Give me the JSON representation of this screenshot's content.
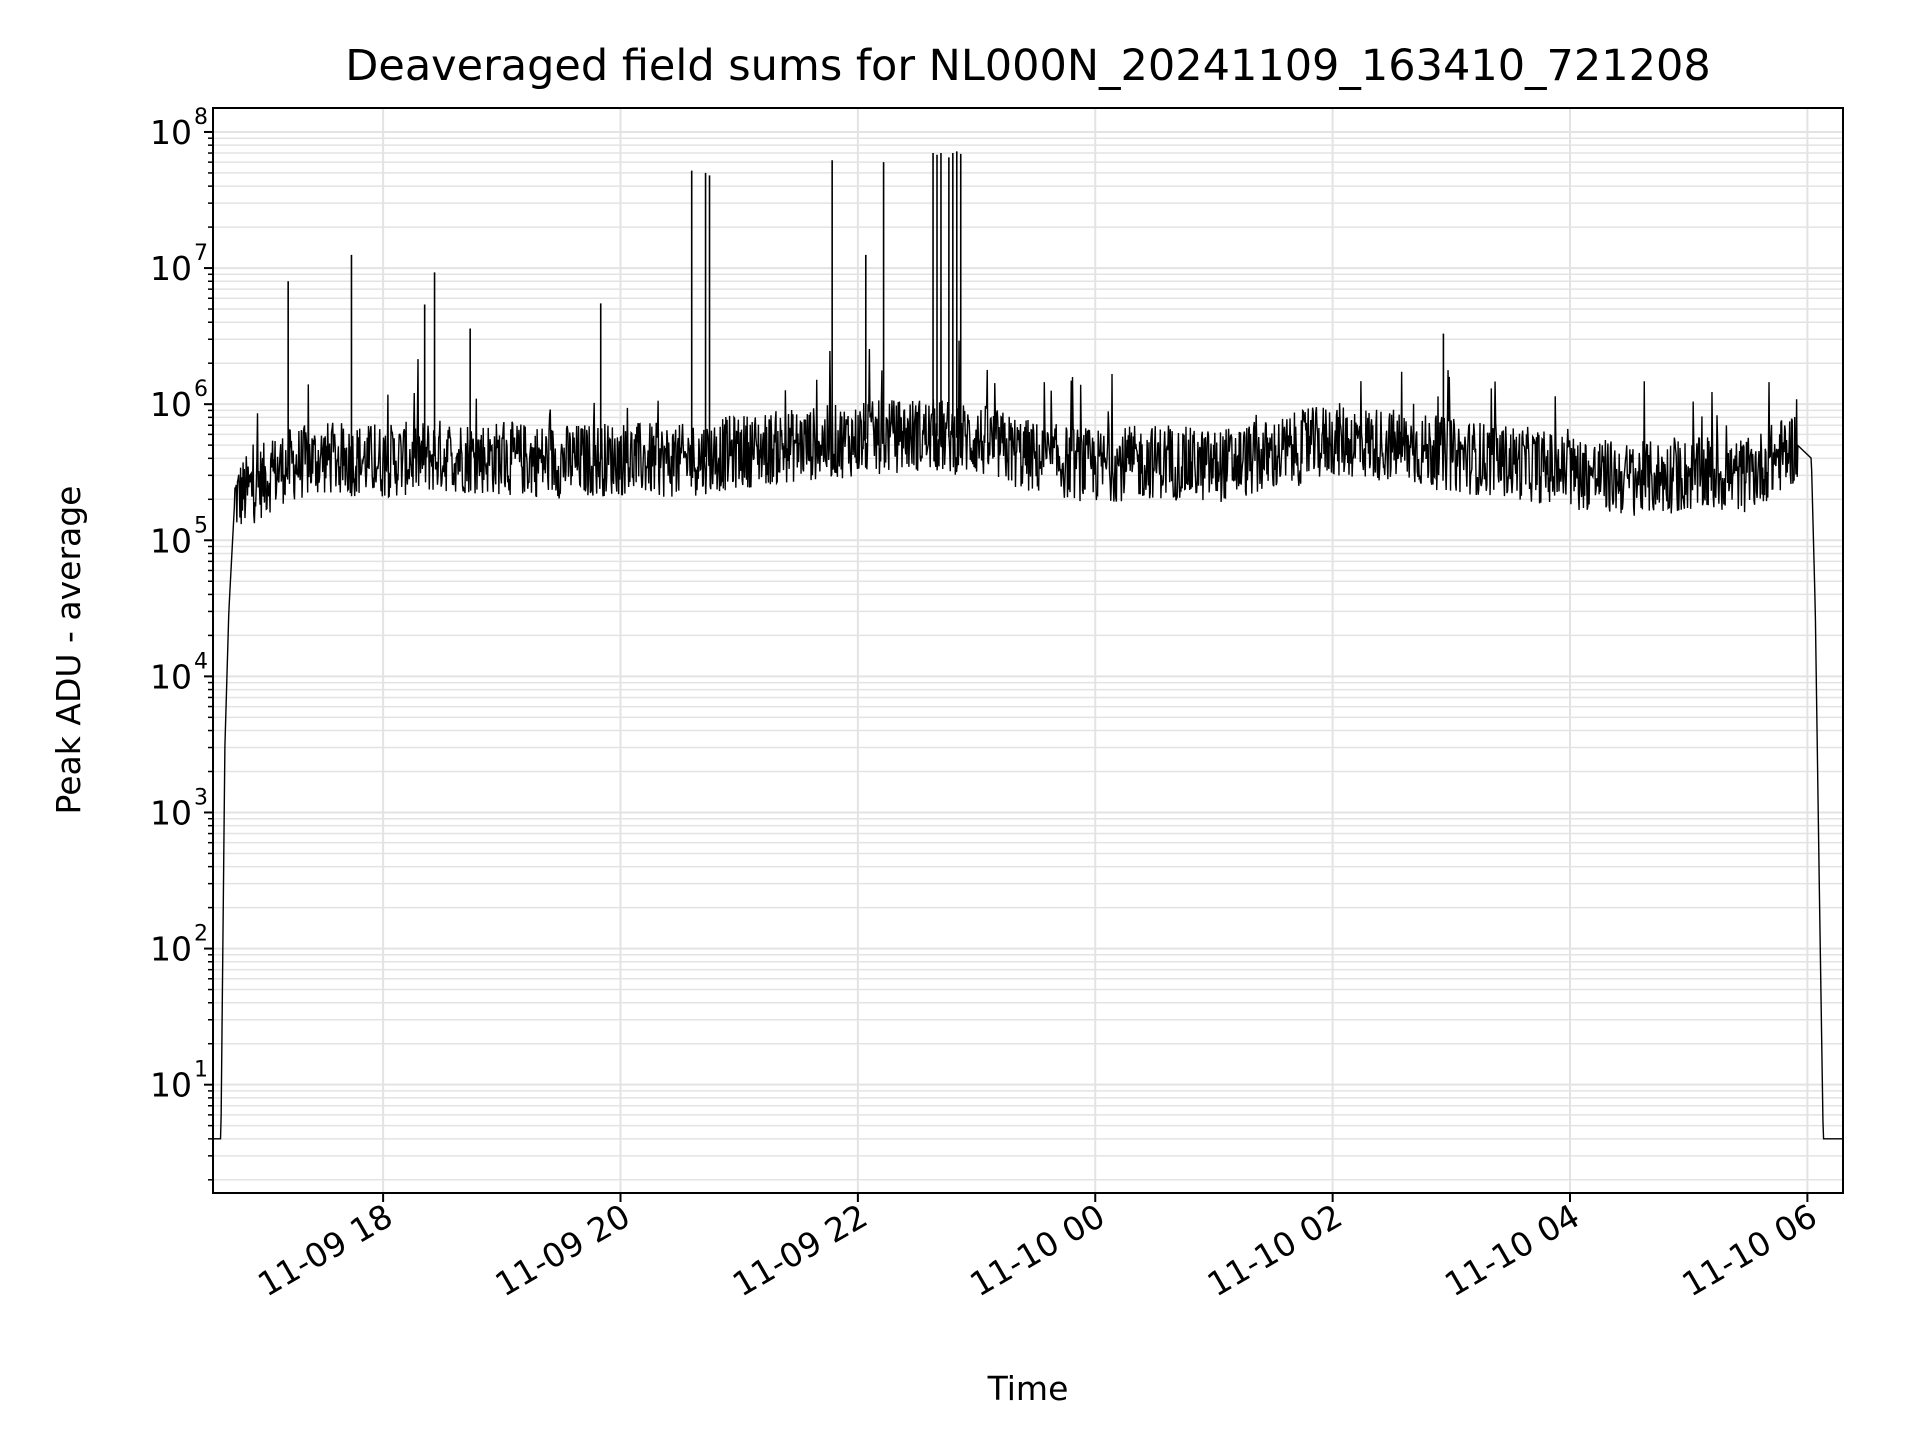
{
  "chart_data": {
    "type": "line",
    "title": "Deaveraged field sums for NL000N_20241109_163410_721208",
    "xlabel": "Time",
    "ylabel": "Peak ADU - average",
    "y_scale": "log",
    "ylim": [
      1.6,
      150000000
    ],
    "xlim": [
      "2024-11-09T16:34:00",
      "2024-11-10T06:18:00"
    ],
    "grid": true,
    "line_color": "#000000",
    "grid_color": "#e3e3e3",
    "x_ticks": [
      {
        "t": "2024-11-09T18:00:00",
        "label": "11-09 18"
      },
      {
        "t": "2024-11-09T20:00:00",
        "label": "11-09 20"
      },
      {
        "t": "2024-11-09T22:00:00",
        "label": "11-09 22"
      },
      {
        "t": "2024-11-10T00:00:00",
        "label": "11-10 00"
      },
      {
        "t": "2024-11-10T02:00:00",
        "label": "11-10 02"
      },
      {
        "t": "2024-11-10T04:00:00",
        "label": "11-10 04"
      },
      {
        "t": "2024-11-10T06:00:00",
        "label": "11-10 06"
      }
    ],
    "y_ticks": [
      {
        "value": 10,
        "base": "10",
        "exp": "1"
      },
      {
        "value": 100,
        "base": "10",
        "exp": "2"
      },
      {
        "value": 1000,
        "base": "10",
        "exp": "3"
      },
      {
        "value": 10000,
        "base": "10",
        "exp": "4"
      },
      {
        "value": 100000,
        "base": "10",
        "exp": "5"
      },
      {
        "value": 1000000,
        "base": "10",
        "exp": "6"
      },
      {
        "value": 10000000,
        "base": "10",
        "exp": "7"
      },
      {
        "value": 100000000,
        "base": "10",
        "exp": "8"
      }
    ],
    "series": [
      {
        "points": [
          [
            "2024-11-09T16:34:00",
            4
          ],
          [
            "2024-11-09T16:38:00",
            4
          ],
          [
            "2024-11-09T16:40:00",
            3000
          ],
          [
            "2024-11-09T16:42:00",
            30000
          ],
          [
            "2024-11-09T16:45:00",
            200000
          ],
          [
            "2024-11-09T17:10:00",
            350000
          ],
          [
            "2024-11-09T17:30:00",
            400000
          ],
          [
            "2024-11-09T18:00:00",
            380000
          ],
          [
            "2024-11-09T18:30:00",
            420000
          ],
          [
            "2024-11-09T19:00:00",
            400000
          ],
          [
            "2024-11-09T19:30:00",
            380000
          ],
          [
            "2024-11-09T20:00:00",
            400000
          ],
          [
            "2024-11-09T20:30:00",
            380000
          ],
          [
            "2024-11-09T21:00:00",
            450000
          ],
          [
            "2024-11-09T21:30:00",
            500000
          ],
          [
            "2024-11-09T22:00:00",
            550000
          ],
          [
            "2024-11-09T22:30:00",
            600000
          ],
          [
            "2024-11-09T23:00:00",
            550000
          ],
          [
            "2024-11-09T23:30:00",
            400000
          ],
          [
            "2024-11-10T00:00:00",
            350000
          ],
          [
            "2024-11-10T00:30:00",
            380000
          ],
          [
            "2024-11-10T01:00:00",
            350000
          ],
          [
            "2024-11-10T01:30:00",
            420000
          ],
          [
            "2024-11-10T02:00:00",
            550000
          ],
          [
            "2024-11-10T02:30:00",
            500000
          ],
          [
            "2024-11-10T03:00:00",
            420000
          ],
          [
            "2024-11-10T03:30:00",
            380000
          ],
          [
            "2024-11-10T04:00:00",
            320000
          ],
          [
            "2024-11-10T04:30:00",
            280000
          ],
          [
            "2024-11-10T05:00:00",
            300000
          ],
          [
            "2024-11-10T05:30:00",
            300000
          ],
          [
            "2024-11-10T05:55:00",
            500000
          ],
          [
            "2024-11-10T06:02:00",
            400000
          ],
          [
            "2024-11-10T06:04:00",
            30000
          ],
          [
            "2024-11-10T06:06:00",
            300
          ],
          [
            "2024-11-10T06:08:00",
            4
          ],
          [
            "2024-11-10T06:18:00",
            4
          ]
        ],
        "spikes": [
          [
            "2024-11-09T17:12:00",
            8000000
          ],
          [
            "2024-11-09T17:44:00",
            12500000
          ],
          [
            "2024-11-09T18:21:00",
            5400000
          ],
          [
            "2024-11-09T18:26:00",
            9300000
          ],
          [
            "2024-11-09T18:44:00",
            3600000
          ],
          [
            "2024-11-09T19:50:00",
            5500000
          ],
          [
            "2024-11-09T20:36:00",
            52000000
          ],
          [
            "2024-11-09T20:43:00",
            50000000
          ],
          [
            "2024-11-09T20:45:00",
            48000000
          ],
          [
            "2024-11-09T21:47:00",
            62000000
          ],
          [
            "2024-11-09T22:04:00",
            12500000
          ],
          [
            "2024-11-09T22:13:00",
            60000000
          ],
          [
            "2024-11-09T22:38:00",
            70000000
          ],
          [
            "2024-11-09T22:40:00",
            68000000
          ],
          [
            "2024-11-09T22:42:00",
            70000000
          ],
          [
            "2024-11-09T22:46:00",
            65000000
          ],
          [
            "2024-11-09T22:48:00",
            70000000
          ],
          [
            "2024-11-09T22:50:00",
            72000000
          ],
          [
            "2024-11-09T22:52:00",
            69000000
          ],
          [
            "2024-11-10T02:56:00",
            3300000
          ]
        ]
      }
    ]
  }
}
